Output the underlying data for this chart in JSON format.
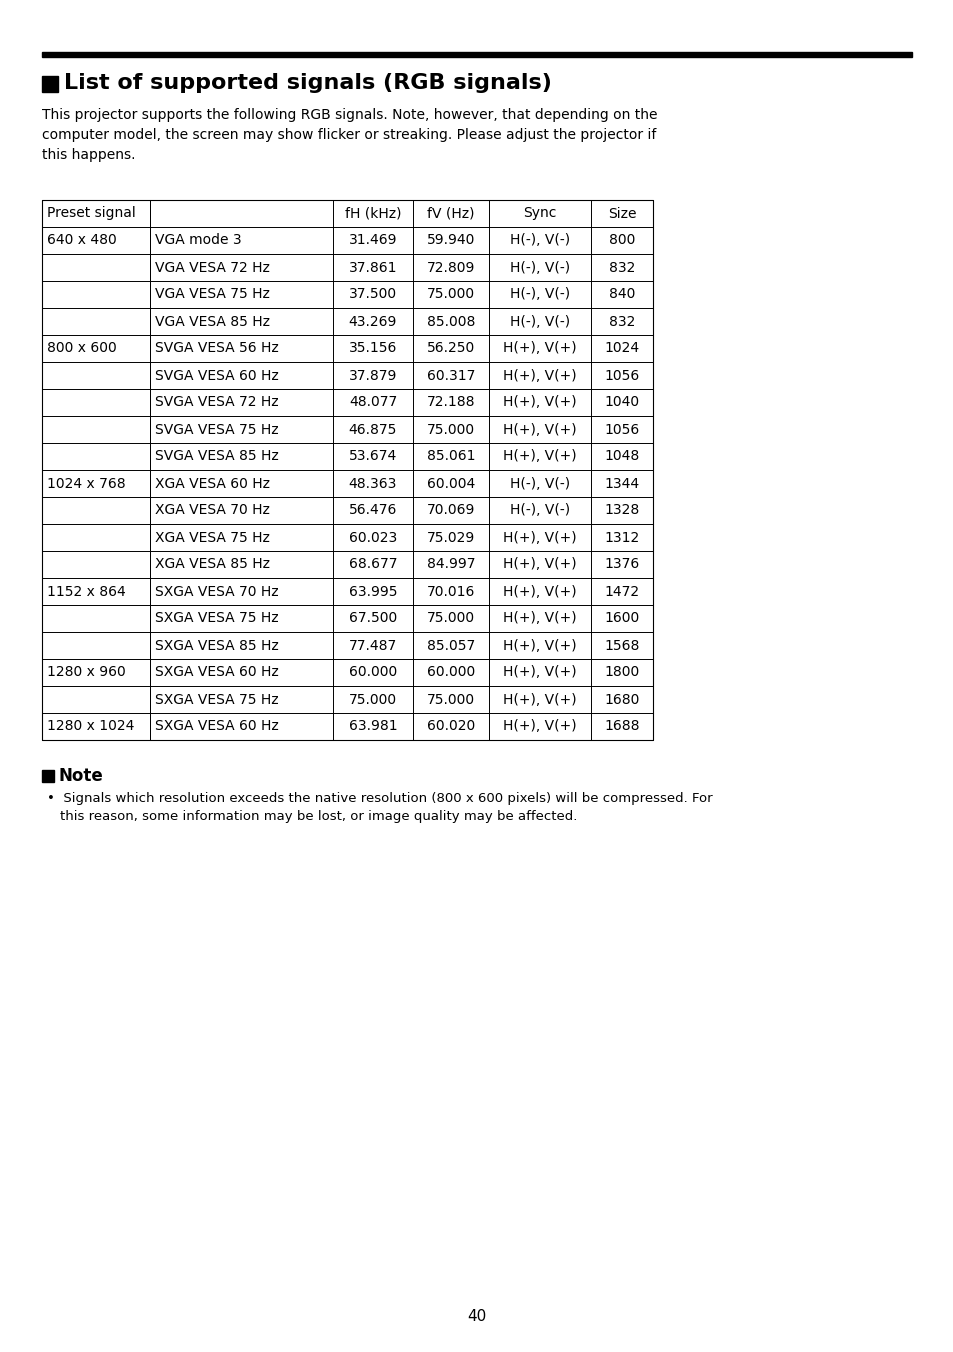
{
  "title": "List of supported signals (RGB signals)",
  "description_lines": [
    "This projector supports the following RGB signals. Note, however, that depending on the",
    "computer model, the screen may show flicker or streaking. Please adjust the projector if",
    "this happens."
  ],
  "table_header": [
    "Preset signal",
    "fH (kHz)",
    "fV (Hz)",
    "Sync",
    "Size"
  ],
  "table_rows": [
    [
      "640 x 480",
      "VGA mode 3",
      "31.469",
      "59.940",
      "H(-), V(-)",
      "800"
    ],
    [
      "",
      "VGA VESA 72 Hz",
      "37.861",
      "72.809",
      "H(-), V(-)",
      "832"
    ],
    [
      "",
      "VGA VESA 75 Hz",
      "37.500",
      "75.000",
      "H(-), V(-)",
      "840"
    ],
    [
      "",
      "VGA VESA 85 Hz",
      "43.269",
      "85.008",
      "H(-), V(-)",
      "832"
    ],
    [
      "800 x 600",
      "SVGA VESA 56 Hz",
      "35.156",
      "56.250",
      "H(+), V(+)",
      "1024"
    ],
    [
      "",
      "SVGA VESA 60 Hz",
      "37.879",
      "60.317",
      "H(+), V(+)",
      "1056"
    ],
    [
      "",
      "SVGA VESA 72 Hz",
      "48.077",
      "72.188",
      "H(+), V(+)",
      "1040"
    ],
    [
      "",
      "SVGA VESA 75 Hz",
      "46.875",
      "75.000",
      "H(+), V(+)",
      "1056"
    ],
    [
      "",
      "SVGA VESA 85 Hz",
      "53.674",
      "85.061",
      "H(+), V(+)",
      "1048"
    ],
    [
      "1024 x 768",
      "XGA VESA 60 Hz",
      "48.363",
      "60.004",
      "H(-), V(-)",
      "1344"
    ],
    [
      "",
      "XGA VESA 70 Hz",
      "56.476",
      "70.069",
      "H(-), V(-)",
      "1328"
    ],
    [
      "",
      "XGA VESA 75 Hz",
      "60.023",
      "75.029",
      "H(+), V(+)",
      "1312"
    ],
    [
      "",
      "XGA VESA 85 Hz",
      "68.677",
      "84.997",
      "H(+), V(+)",
      "1376"
    ],
    [
      "1152 x 864",
      "SXGA VESA 70 Hz",
      "63.995",
      "70.016",
      "H(+), V(+)",
      "1472"
    ],
    [
      "",
      "SXGA VESA 75 Hz",
      "67.500",
      "75.000",
      "H(+), V(+)",
      "1600"
    ],
    [
      "",
      "SXGA VESA 85 Hz",
      "77.487",
      "85.057",
      "H(+), V(+)",
      "1568"
    ],
    [
      "1280 x 960",
      "SXGA VESA 60 Hz",
      "60.000",
      "60.000",
      "H(+), V(+)",
      "1800"
    ],
    [
      "",
      "SXGA VESA 75 Hz",
      "75.000",
      "75.000",
      "H(+), V(+)",
      "1680"
    ],
    [
      "1280 x 1024",
      "SXGA VESA 60 Hz",
      "63.981",
      "60.020",
      "H(+), V(+)",
      "1688"
    ]
  ],
  "note_title": "Note",
  "note_text_lines": [
    "Signals which resolution exceeds the native resolution (800 x 600 pixels) will be compressed. For",
    "this reason, some information may be lost, or image quality may be affected."
  ],
  "page_number": "40",
  "background_color": "#ffffff",
  "text_color": "#000000"
}
